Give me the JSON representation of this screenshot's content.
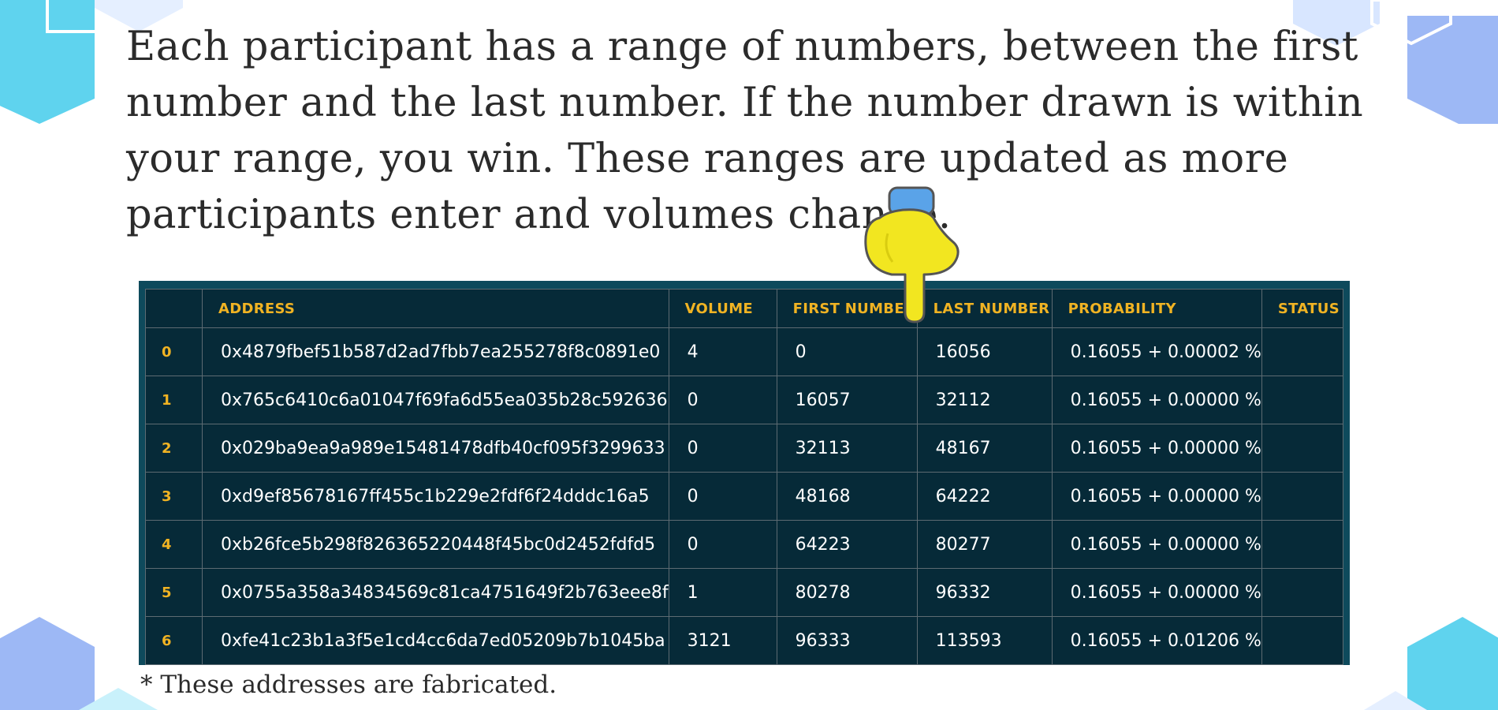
{
  "intro": {
    "text": "Each participant has a range of numbers, between the first number and the last number. If the number drawn is within your range, you win. These ranges are updated as more participants enter and volumes change."
  },
  "table": {
    "headers": [
      "",
      "ADDRESS",
      "VOLUME",
      "FIRST NUMBER",
      "LAST NUMBER",
      "PROBABILITY",
      "STATUS"
    ],
    "rows": [
      {
        "index": "0",
        "address": "0x4879fbef51b587d2ad7fbb7ea255278f8c0891e0",
        "volume": "4",
        "first": "0",
        "last": "16056",
        "probability": "0.16055 + 0.00002 %",
        "status": ""
      },
      {
        "index": "1",
        "address": "0x765c6410c6a01047f69fa6d55ea035b28c592636",
        "volume": "0",
        "first": "16057",
        "last": "32112",
        "probability": "0.16055 + 0.00000 %",
        "status": ""
      },
      {
        "index": "2",
        "address": "0x029ba9ea9a989e15481478dfb40cf095f3299633",
        "volume": "0",
        "first": "32113",
        "last": "48167",
        "probability": "0.16055 + 0.00000 %",
        "status": ""
      },
      {
        "index": "3",
        "address": "0xd9ef85678167ff455c1b229e2fdf6f24dddc16a5",
        "volume": "0",
        "first": "48168",
        "last": "64222",
        "probability": "0.16055 + 0.00000 %",
        "status": ""
      },
      {
        "index": "4",
        "address": "0xb26fce5b298f826365220448f45bc0d2452fdfd5",
        "volume": "0",
        "first": "64223",
        "last": "80277",
        "probability": "0.16055 + 0.00000 %",
        "status": ""
      },
      {
        "index": "5",
        "address": "0x0755a358a34834569c81ca4751649f2b763eee8f",
        "volume": "1",
        "first": "80278",
        "last": "96332",
        "probability": "0.16055 + 0.00000 %",
        "status": ""
      },
      {
        "index": "6",
        "address": "0xfe41c23b1a3f5e1cd4cc6da7ed05209b7b1045ba",
        "volume": "3121",
        "first": "96333",
        "last": "113593",
        "probability": "0.16055 + 0.01206 %",
        "status": ""
      }
    ]
  },
  "footnote": "* These addresses are fabricated.",
  "icons": {
    "cursor": "pointing-hand-cursor-icon",
    "decoration": "hexagon-decoration-icon"
  },
  "colors": {
    "table_bg": "#062a38",
    "table_border": "#0e4a5c",
    "header_text": "#f0b323",
    "body_text": "#ffffff",
    "hex_cyan": "#5fd3ee",
    "hex_blue": "#9db8f5"
  }
}
